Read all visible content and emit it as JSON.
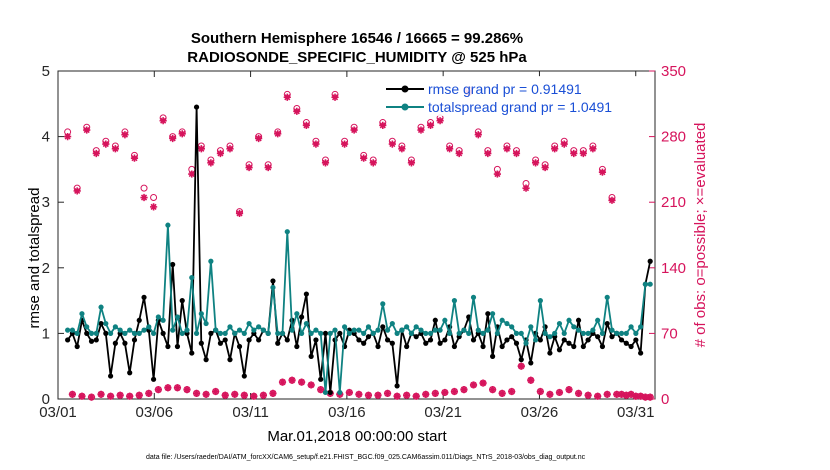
{
  "chart_data": {
    "type": "line",
    "title_line1": "Southern Hemisphere 16546 / 16665 = 99.286%",
    "title_line2": "RADIOSONDE_SPECIFIC_HUMIDITY @ 525 hPa",
    "xlabel": "Mar.01,2018 00:00:00 start",
    "ylabel_left": "rmse and totalspread",
    "ylabel_right": "# of obs: o=possible; ×=evaluated",
    "footnote": "data file: /Users/raeder/DAI/ATM_forcXX/CAM6_setup/f.e21.FHIST_BGC.f09_025.CAM6assim.011/Diags_NTrS_2018-03/obs_diag_output.nc",
    "x_tick_labels": [
      "03/01",
      "03/06",
      "03/11",
      "03/16",
      "03/21",
      "03/26",
      "03/31"
    ],
    "x_tick_days": [
      0,
      5,
      10,
      15,
      20,
      25,
      30
    ],
    "xlim": [
      0,
      31
    ],
    "ylim_left": [
      0,
      5
    ],
    "yticks_left": [
      "0",
      "1",
      "2",
      "3",
      "4",
      "5"
    ],
    "ylim_right": [
      0,
      350
    ],
    "yticks_right": [
      "0",
      "70",
      "140",
      "210",
      "280",
      "350"
    ],
    "colors": {
      "rmse": "#000000",
      "spread": "#0f8282",
      "obs": "#d6145c",
      "legend_text": "#1a4fd6"
    },
    "series": [
      {
        "name": "rmse grand pr = 0.91491",
        "key": "rmse",
        "axis": "left",
        "values": [
          0.9,
          1.0,
          0.8,
          1.2,
          1.0,
          0.88,
          0.9,
          1.15,
          1.0,
          0.35,
          0.85,
          1.0,
          0.85,
          0.4,
          0.9,
          1.2,
          1.55,
          1.05,
          0.3,
          1.2,
          1.0,
          0.8,
          2.05,
          0.8,
          1.5,
          1.0,
          0.7,
          4.45,
          0.85,
          0.6,
          1.0,
          1.05,
          0.85,
          0.9,
          0.6,
          1.0,
          0.8,
          0.35,
          0.9,
          1.0,
          0.9,
          1.05,
          1.0,
          1.8,
          0.85,
          1.0,
          0.9,
          1.2,
          0.8,
          1.25,
          1.6,
          0.65,
          0.9,
          0.3,
          1.0,
          0.1,
          0.9,
          1.0,
          0.8,
          1.05,
          1.0,
          0.9,
          0.85,
          0.95,
          1.0,
          0.8,
          1.1,
          0.9,
          0.85,
          0.2,
          1.05,
          0.8,
          1.0,
          0.95,
          1.0,
          0.85,
          0.9,
          1.2,
          0.85,
          0.9,
          1.1,
          0.8,
          0.95,
          1.05,
          1.25,
          0.9,
          1.0,
          0.8,
          1.3,
          0.65,
          1.1,
          0.8,
          0.9,
          0.95,
          0.85,
          0.6,
          0.9,
          0.55,
          1.0,
          0.9,
          1.1,
          0.7,
          0.95,
          0.75,
          0.9,
          0.85,
          0.8,
          1.2,
          0.8,
          0.9,
          1.0,
          0.95,
          0.8,
          1.15,
          0.95,
          1.0,
          0.9,
          0.85,
          0.8,
          0.9,
          0.7,
          1.75,
          2.1
        ]
      },
      {
        "name": "totalspread grand pr = 1.0491",
        "key": "spread",
        "axis": "left",
        "values": [
          1.05,
          1.05,
          1.0,
          1.3,
          1.1,
          1.0,
          1.0,
          1.4,
          1.15,
          1.0,
          1.1,
          1.05,
          1.0,
          1.05,
          1.0,
          1.0,
          1.05,
          1.1,
          1.0,
          1.25,
          1.2,
          2.65,
          1.05,
          1.25,
          1.0,
          1.05,
          1.85,
          1.0,
          1.3,
          1.15,
          2.1,
          1.05,
          1.0,
          1.0,
          1.1,
          1.0,
          1.05,
          1.0,
          1.15,
          1.05,
          1.1,
          1.05,
          1.0,
          1.7,
          1.0,
          1.0,
          2.55,
          1.05,
          1.3,
          1.0,
          1.15,
          1.0,
          1.05,
          1.0,
          0.1,
          1.0,
          1.05,
          0.1,
          1.1,
          1.0,
          1.05,
          1.05,
          1.0,
          1.1,
          1.0,
          1.05,
          1.45,
          1.05,
          1.15,
          1.0,
          1.05,
          1.1,
          1.0,
          1.1,
          1.05,
          1.0,
          1.0,
          1.05,
          1.05,
          1.2,
          1.0,
          1.5,
          1.0,
          1.05,
          1.0,
          1.55,
          1.05,
          1.0,
          1.05,
          1.3,
          1.0,
          1.2,
          1.15,
          1.1,
          1.0,
          1.0,
          0.85,
          1.1,
          0.9,
          1.5,
          1.0,
          0.95,
          1.0,
          1.15,
          1.0,
          1.2,
          1.1,
          1.05,
          1.0,
          1.0,
          1.05,
          1.2,
          1.0,
          1.55,
          1.05,
          1.0,
          1.0,
          1.0,
          1.1,
          1.0,
          1.1,
          1.75,
          1.75
        ]
      },
      {
        "name": "# of obs possible",
        "key": "obs_possible",
        "axis": "right",
        "values": [
          285,
          5,
          225,
          3,
          290,
          2,
          265,
          5,
          275,
          3,
          270,
          4,
          285,
          3,
          260,
          4,
          225,
          6,
          215,
          10,
          300,
          12,
          280,
          12,
          285,
          10,
          245,
          6,
          270,
          5,
          255,
          8,
          265,
          4,
          270,
          5,
          200,
          4,
          250,
          3,
          280,
          4,
          250,
          6,
          285,
          18,
          325,
          20,
          310,
          18,
          295,
          15,
          275,
          10,
          255,
          6,
          325,
          5,
          275,
          7,
          290,
          5,
          260,
          4,
          255,
          4,
          295,
          6,
          275,
          3,
          270,
          4,
          255,
          3,
          290,
          5,
          295,
          6,
          300,
          7,
          270,
          8,
          265,
          10,
          330,
          15,
          285,
          17,
          265,
          10,
          245,
          6,
          270,
          8,
          265,
          35,
          230,
          20,
          255,
          8,
          250,
          5,
          270,
          7,
          275,
          10,
          265,
          6,
          265,
          4,
          270,
          3,
          245,
          5,
          215,
          5,
          5,
          4,
          5,
          3,
          3,
          2,
          2
        ]
      },
      {
        "name": "# of obs evaluated",
        "key": "obs_evaluated",
        "axis": "right",
        "values": [
          280,
          5,
          222,
          3,
          287,
          2,
          262,
          5,
          272,
          3,
          267,
          4,
          282,
          3,
          257,
          4,
          215,
          6,
          205,
          10,
          297,
          12,
          278,
          12,
          283,
          10,
          240,
          6,
          267,
          5,
          252,
          8,
          262,
          4,
          267,
          5,
          198,
          4,
          247,
          3,
          278,
          4,
          247,
          6,
          283,
          18,
          322,
          20,
          307,
          18,
          292,
          15,
          272,
          10,
          252,
          6,
          322,
          5,
          272,
          7,
          287,
          5,
          257,
          4,
          252,
          4,
          292,
          6,
          272,
          3,
          267,
          4,
          252,
          3,
          287,
          5,
          292,
          6,
          297,
          7,
          267,
          8,
          262,
          10,
          327,
          15,
          282,
          17,
          262,
          10,
          240,
          6,
          267,
          8,
          262,
          35,
          225,
          20,
          252,
          8,
          247,
          5,
          267,
          7,
          272,
          10,
          262,
          6,
          262,
          4,
          267,
          3,
          242,
          5,
          212,
          5,
          5,
          4,
          5,
          3,
          3,
          2,
          2
        ]
      }
    ],
    "legend": [
      {
        "key": "rmse",
        "label": "rmse grand pr = 0.91491"
      },
      {
        "key": "spread",
        "label": "totalspread grand pr = 1.0491"
      }
    ]
  }
}
